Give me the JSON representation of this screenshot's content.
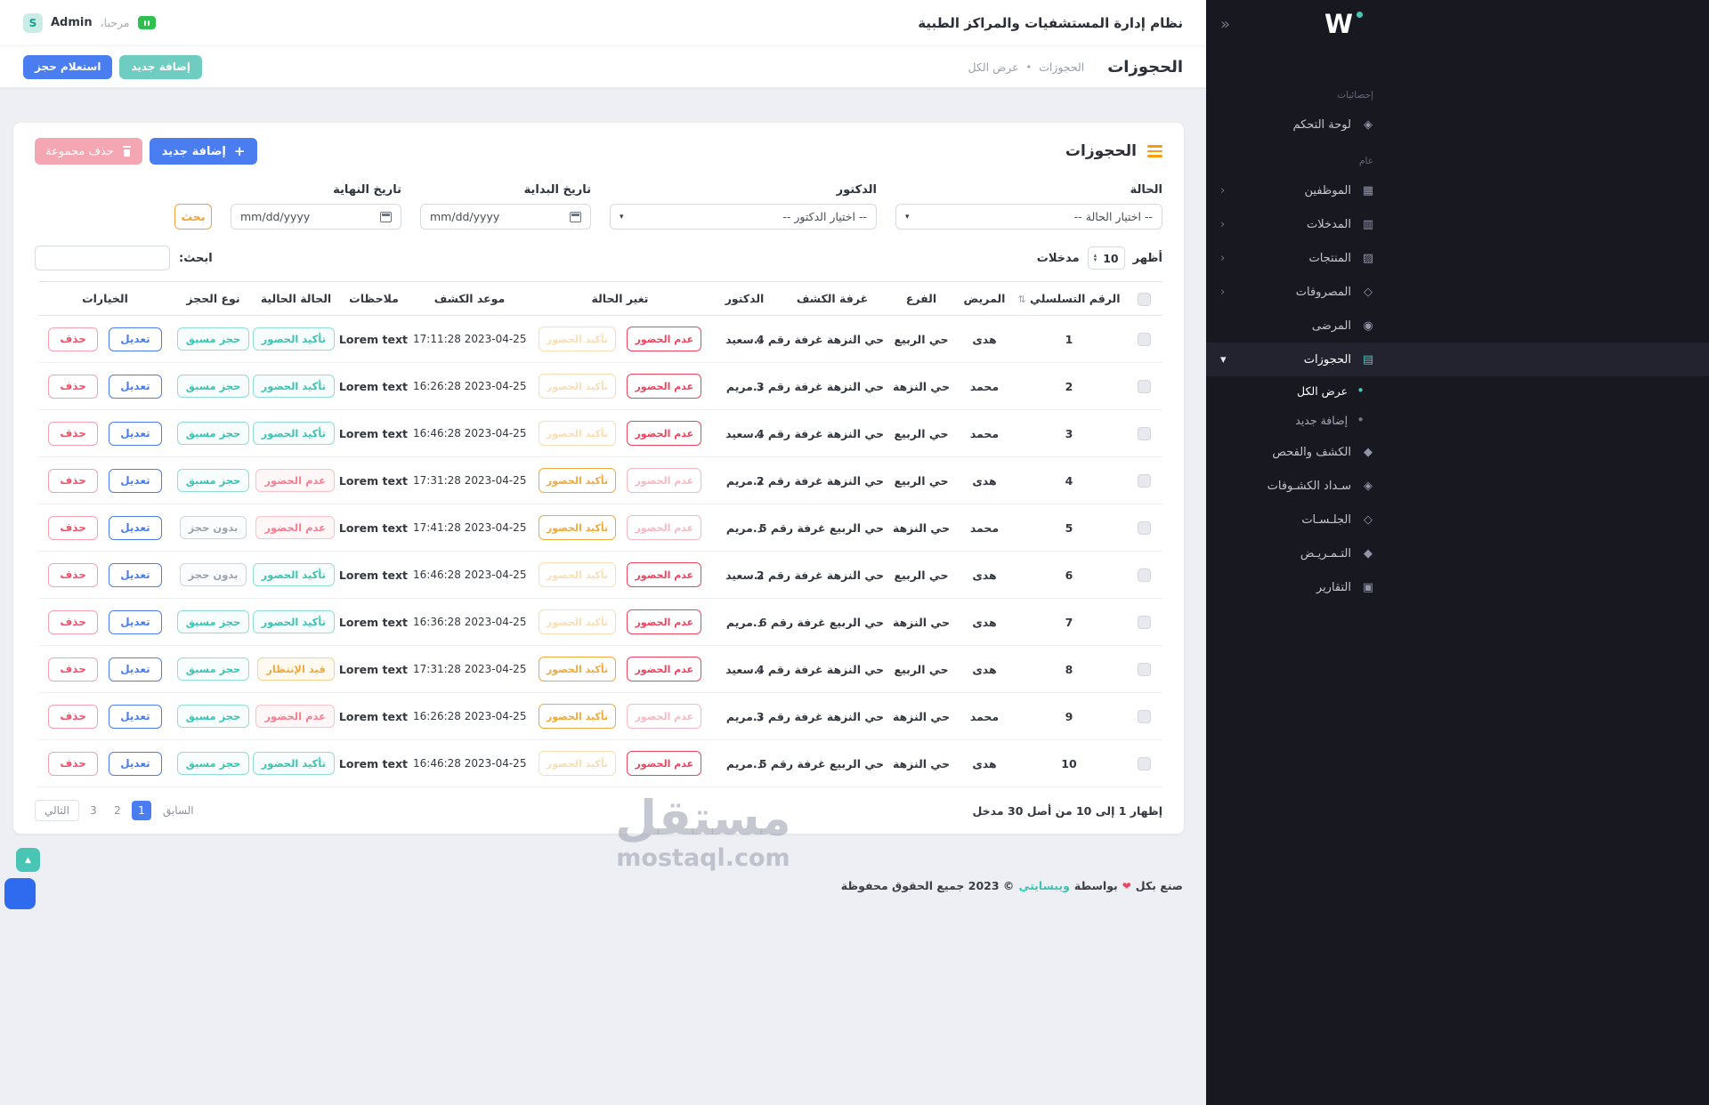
{
  "theme": {
    "accent_teal": "#49c5b6",
    "accent_blue": "#4a7df0",
    "accent_red": "#f0435e",
    "accent_pink": "#f77e90",
    "accent_yellow": "#f0a93c",
    "accent_orange": "#f0a13c",
    "sidebar_bg": "#181821",
    "page_bg": "#edeff4"
  },
  "icons": {
    "plus-icon": "+",
    "caret-down-icon": "▾",
    "spinner-up-icon": "▴",
    "spinner-down-icon": "▾",
    "sort-icon": "⇅",
    "heart-icon": "❤",
    "scroll-top-icon": "▲",
    "collapse-icon": "«",
    "chevron-left-icon": "‹",
    "chevron-down-icon": "▾",
    "bullet-icon": "•",
    "dashboard-icon": "◈",
    "employees-icon": "▦",
    "entries-icon": "▥",
    "products-icon": "▨",
    "expenses-icon": "◇",
    "patients-icon": "◉",
    "reservations-icon": "▤",
    "examination-icon": "◆",
    "payments-icon": "◈",
    "sessions-icon": "◇",
    "nursing-icon": "◆",
    "reports-icon": "▣"
  },
  "topbar": {
    "title": "نظام إدارة المستشفيات والمراكز الطبية",
    "welcome": "مرحبا،",
    "username": "Admin",
    "avatar_letter": "S"
  },
  "page_header": {
    "title": "الحجوزات",
    "breadcrumb_parent": "الحجوزات",
    "breadcrumb_separator": "•",
    "breadcrumb_current": "عرض الكل",
    "add_new_button": "إضافة جديد",
    "inquiry_button": "استعلام حجز"
  },
  "sidebar": {
    "logo_text": "W",
    "sections": [
      {
        "label": "إحصائيات",
        "items": [
          {
            "id": "dashboard",
            "label": "لوحة التحكم",
            "icon": "dashboard-icon",
            "expandable": false,
            "active": false
          }
        ]
      },
      {
        "label": "عام",
        "items": [
          {
            "id": "employees",
            "label": "الموظفين",
            "icon": "employees-icon",
            "expandable": true,
            "active": false
          },
          {
            "id": "entries",
            "label": "المدخلات",
            "icon": "entries-icon",
            "expandable": true,
            "active": false
          },
          {
            "id": "products",
            "label": "المنتجات",
            "icon": "products-icon",
            "expandable": true,
            "active": false
          },
          {
            "id": "expenses",
            "label": "المصروفات",
            "icon": "expenses-icon",
            "expandable": true,
            "active": false
          },
          {
            "id": "patients",
            "label": "المرضى",
            "icon": "patients-icon",
            "expandable": false,
            "active": false
          },
          {
            "id": "reservations",
            "label": "الحجوزات",
            "icon": "reservations-icon",
            "expandable": true,
            "expanded": true,
            "active": true,
            "children": [
              {
                "id": "view-all",
                "label": "عرض الكل",
                "active": true
              },
              {
                "id": "add-new",
                "label": "إضافة جديد",
                "active": false
              }
            ]
          },
          {
            "id": "examination",
            "label": "الكشف والفحص",
            "icon": "examination-icon",
            "expandable": false,
            "active": false
          },
          {
            "id": "payments",
            "label": "سـداد الكشـوفات",
            "icon": "payments-icon",
            "expandable": false,
            "active": false
          },
          {
            "id": "sessions",
            "label": "الجلـسـات",
            "icon": "sessions-icon",
            "expandable": false,
            "active": false
          },
          {
            "id": "nursing",
            "label": "التـمـريـض",
            "icon": "nursing-icon",
            "expandable": false,
            "active": false
          },
          {
            "id": "reports",
            "label": "التقارير",
            "icon": "reports-icon",
            "expandable": false,
            "active": false
          }
        ]
      }
    ]
  },
  "card": {
    "title": "الحجوزات",
    "add_button": "إضافة جديد",
    "delete_group_button": "حذف مجموعة",
    "filters": {
      "status_label": "الحالة",
      "status_value": "-- اختيار الحالة --",
      "doctor_label": "الدكتور",
      "doctor_value": "-- اختيار الدكتور --",
      "start_date_label": "تاريخ البداية",
      "end_date_label": "تاريخ النهاية",
      "date_placeholder": "mm/dd/yyyy",
      "search_button": "بحث"
    },
    "entries": {
      "show_label": "أظهر",
      "value": "10",
      "suffix_label": "مدخلات"
    },
    "search_label": "ابحث:"
  },
  "table": {
    "headers": [
      "الرقم التسلسلي",
      "المريض",
      "الفرع",
      "غرفة الكشف",
      "الدكتور",
      "تغير الحالة",
      "موعد الكشف",
      "ملاحظات",
      "الحالة الحالية",
      "نوع الحجز",
      "الخيارات"
    ],
    "actions": {
      "no_show": "عدم الحضور",
      "confirm": "تأكيد الحضور",
      "edit": "تعديل",
      "delete": "حذف"
    },
    "rows": [
      {
        "serial": "1",
        "patient": "هدى",
        "branch": "حي الربيع",
        "room": "حي النزهة غرفة رقم 4",
        "doctor": "د.سعيد",
        "no_show_state": "active",
        "confirm_state": "muted",
        "appointment": "17:11:28 2023-04-25",
        "notes": "Lorem text",
        "current_status": "تأكيد الحضور",
        "current_status_color": "teal",
        "booking_type": "حجز مسبق",
        "booking_type_color": "teal"
      },
      {
        "serial": "2",
        "patient": "محمد",
        "branch": "حي النزهة",
        "room": "حي النزهة غرفة رقم 3",
        "doctor": "د.مريم",
        "no_show_state": "active",
        "confirm_state": "muted",
        "appointment": "16:26:28 2023-04-25",
        "notes": "Lorem text",
        "current_status": "تأكيد الحضور",
        "current_status_color": "teal",
        "booking_type": "حجز مسبق",
        "booking_type_color": "teal"
      },
      {
        "serial": "3",
        "patient": "محمد",
        "branch": "حي الربيع",
        "room": "حي النزهة غرفة رقم 4",
        "doctor": "د.سعيد",
        "no_show_state": "active",
        "confirm_state": "muted",
        "appointment": "16:46:28 2023-04-25",
        "notes": "Lorem text",
        "current_status": "تأكيد الحضور",
        "current_status_color": "teal",
        "booking_type": "حجز مسبق",
        "booking_type_color": "teal"
      },
      {
        "serial": "4",
        "patient": "هدى",
        "branch": "حي الربيع",
        "room": "حي النزهة غرفة رقم 2",
        "doctor": "د.مريم",
        "no_show_state": "muted",
        "confirm_state": "active",
        "appointment": "17:31:28 2023-04-25",
        "notes": "Lorem text",
        "current_status": "عدم الحضور",
        "current_status_color": "pink",
        "booking_type": "حجز مسبق",
        "booking_type_color": "teal"
      },
      {
        "serial": "5",
        "patient": "محمد",
        "branch": "حي النزهة",
        "room": "حي الربيع غرفة رقم 5",
        "doctor": "د.مريم",
        "no_show_state": "muted",
        "confirm_state": "active",
        "appointment": "17:41:28 2023-04-25",
        "notes": "Lorem text",
        "current_status": "عدم الحضور",
        "current_status_color": "pink",
        "booking_type": "بدون حجز",
        "booking_type_color": "gray"
      },
      {
        "serial": "6",
        "patient": "هدى",
        "branch": "حي الربيع",
        "room": "حي النزهة غرفة رقم 2",
        "doctor": "د.سعيد",
        "no_show_state": "active",
        "confirm_state": "muted",
        "appointment": "16:46:28 2023-04-25",
        "notes": "Lorem text",
        "current_status": "تأكيد الحضور",
        "current_status_color": "teal",
        "booking_type": "بدون حجز",
        "booking_type_color": "gray"
      },
      {
        "serial": "7",
        "patient": "هدى",
        "branch": "حي النزهة",
        "room": "حي الربيع غرفة رقم 6",
        "doctor": "د.مريم",
        "no_show_state": "active",
        "confirm_state": "muted",
        "appointment": "16:36:28 2023-04-25",
        "notes": "Lorem text",
        "current_status": "تأكيد الحضور",
        "current_status_color": "teal",
        "booking_type": "حجز مسبق",
        "booking_type_color": "teal"
      },
      {
        "serial": "8",
        "patient": "هدى",
        "branch": "حي الربيع",
        "room": "حي النزهة غرفة رقم 4",
        "doctor": "د.سعيد",
        "no_show_state": "active",
        "confirm_state": "active",
        "appointment": "17:31:28 2023-04-25",
        "notes": "Lorem text",
        "current_status": "قيد الإنتظار",
        "current_status_color": "yellow",
        "booking_type": "حجز مسبق",
        "booking_type_color": "teal"
      },
      {
        "serial": "9",
        "patient": "محمد",
        "branch": "حي النزهة",
        "room": "حي النزهة غرفة رقم 3",
        "doctor": "د.مريم",
        "no_show_state": "muted",
        "confirm_state": "active",
        "appointment": "16:26:28 2023-04-25",
        "notes": "Lorem text",
        "current_status": "عدم الحضور",
        "current_status_color": "pink",
        "booking_type": "حجز مسبق",
        "booking_type_color": "teal"
      },
      {
        "serial": "10",
        "patient": "هدى",
        "branch": "حي النزهة",
        "room": "حي الربيع غرفة رقم 5",
        "doctor": "د.مريم",
        "no_show_state": "active",
        "confirm_state": "muted",
        "appointment": "16:46:28 2023-04-25",
        "notes": "Lorem text",
        "current_status": "تأكيد الحضور",
        "current_status_color": "teal",
        "booking_type": "حجز مسبق",
        "booking_type_color": "teal"
      }
    ],
    "summary": "إظهار 1 إلى 10 من أصل 30 مدخل"
  },
  "pagination": {
    "previous": "السابق",
    "pages": [
      "1",
      "2",
      "3"
    ],
    "active_page": "1",
    "next": "التالي"
  },
  "footer": {
    "made_with": "صنع بكل",
    "by": "بواسطة",
    "brand": "ويبسايتي",
    "rights": "© 2023 جميع الحقوق محفوظة"
  },
  "watermark": {
    "title": "مستقل",
    "domain": "mostaql.com"
  }
}
